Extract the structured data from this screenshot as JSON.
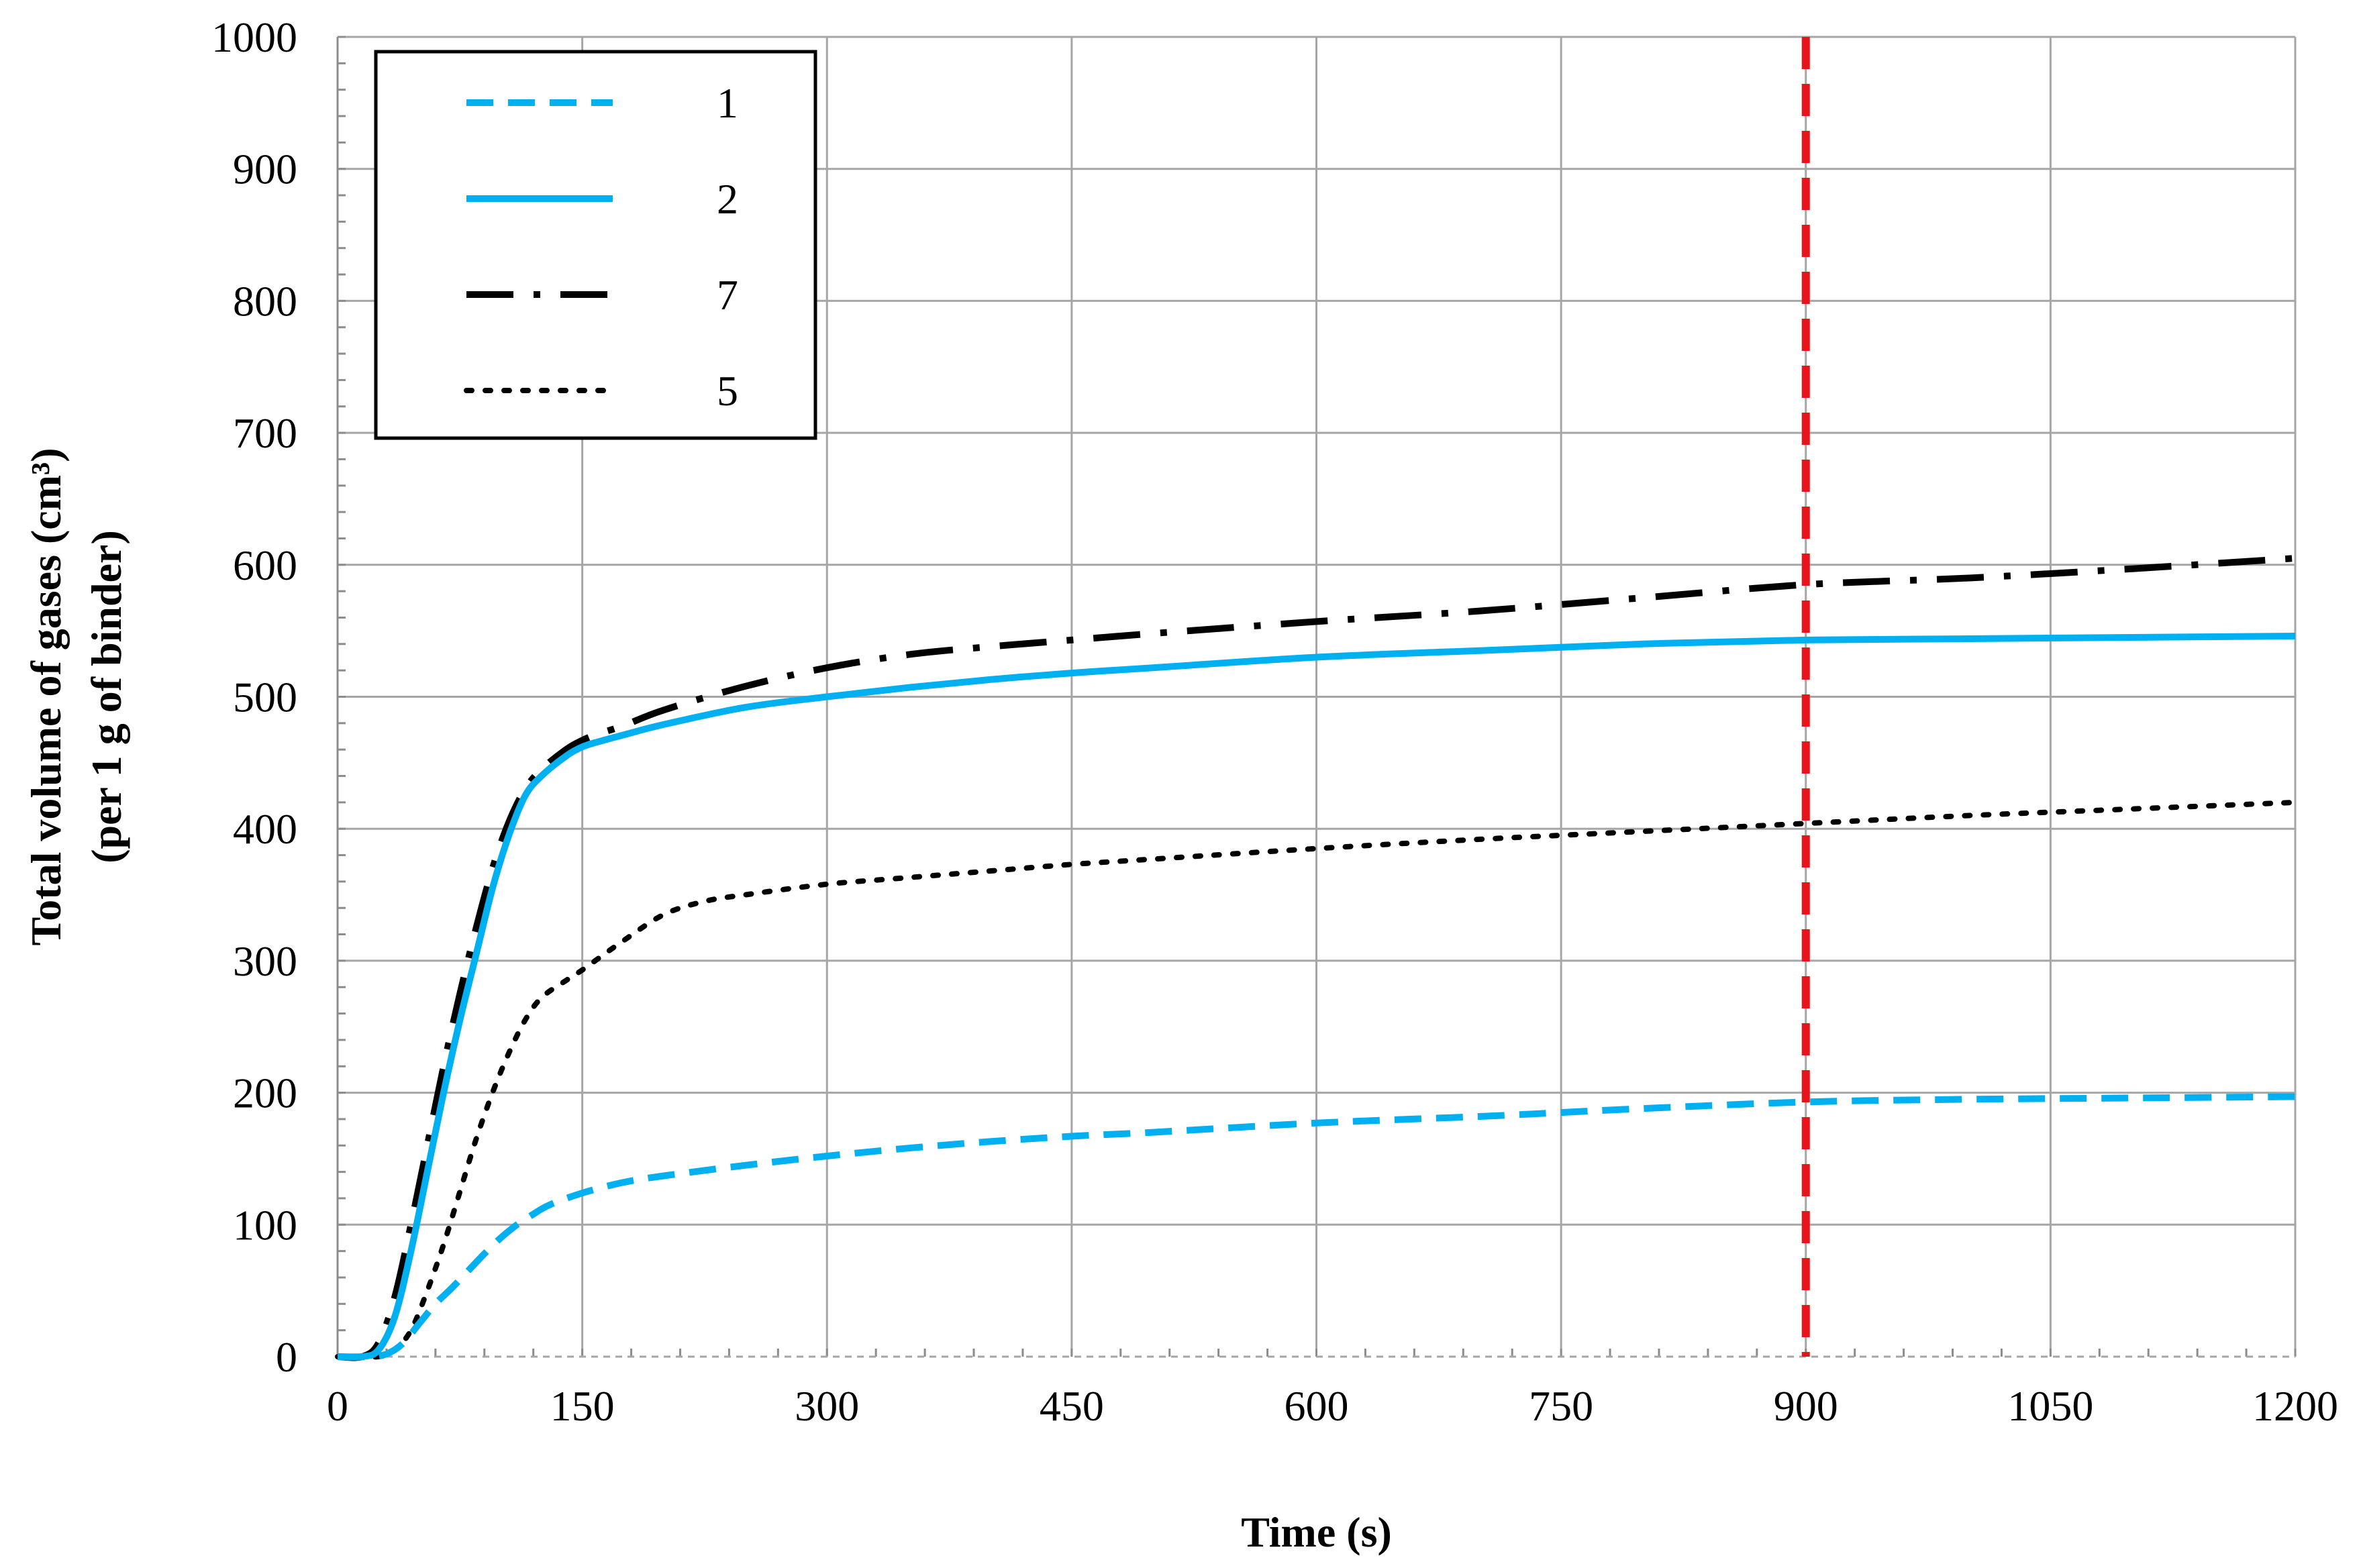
{
  "chart_data": {
    "type": "line",
    "title": "",
    "xlabel": "Time (s)",
    "ylabel_line1": "Total volume of gases (cm³)",
    "ylabel_line2": "(per 1 g of binder)",
    "xlim": [
      0,
      1200
    ],
    "ylim": [
      0,
      1000
    ],
    "xticks": [
      0,
      150,
      300,
      450,
      600,
      750,
      900,
      1050,
      1200
    ],
    "xtick_labels": [
      "0",
      "150",
      "300",
      "450",
      "600",
      "750",
      "900",
      "1050",
      "1200"
    ],
    "yticks": [
      0,
      100,
      200,
      300,
      400,
      500,
      600,
      700,
      800,
      900,
      1000
    ],
    "ytick_labels": [
      "0",
      "100",
      "200",
      "300",
      "400",
      "500",
      "600",
      "700",
      "800",
      "900",
      "1000"
    ],
    "grid": true,
    "legend_position": "top-left",
    "reference_line": {
      "x": 900,
      "color": "#e8141c",
      "style": "dashed"
    },
    "series": [
      {
        "name": "1",
        "style": "dashed",
        "color": "#00b0f0",
        "x": [
          0,
          20,
          30,
          40,
          50,
          60,
          70,
          80,
          90,
          100,
          110,
          120,
          130,
          150,
          175,
          200,
          250,
          300,
          350,
          400,
          450,
          500,
          600,
          700,
          750,
          800,
          900,
          1000,
          1100,
          1200
        ],
        "y": [
          0,
          0,
          2,
          10,
          25,
          40,
          52,
          65,
          78,
          90,
          100,
          108,
          115,
          124,
          132,
          137,
          145,
          152,
          158,
          163,
          167,
          170,
          177,
          182,
          185,
          188,
          193,
          195,
          196,
          197
        ]
      },
      {
        "name": "2",
        "style": "solid",
        "color": "#00b0f0",
        "x": [
          0,
          15,
          25,
          35,
          45,
          55,
          65,
          75,
          85,
          95,
          105,
          115,
          125,
          140,
          150,
          160,
          175,
          200,
          250,
          300,
          350,
          400,
          450,
          500,
          600,
          700,
          800,
          900,
          1000,
          1100,
          1200
        ],
        "y": [
          0,
          0,
          5,
          30,
          80,
          140,
          200,
          255,
          305,
          355,
          395,
          425,
          440,
          455,
          462,
          466,
          471,
          479,
          492,
          500,
          507,
          513,
          518,
          522,
          530,
          535,
          540,
          543,
          544,
          545,
          546
        ]
      },
      {
        "name": "7",
        "style": "dashdot",
        "color": "#000000",
        "x": [
          0,
          15,
          25,
          35,
          45,
          55,
          65,
          75,
          85,
          95,
          105,
          115,
          125,
          140,
          150,
          160,
          175,
          200,
          250,
          300,
          350,
          400,
          450,
          500,
          600,
          700,
          800,
          900,
          1000,
          1100,
          1200
        ],
        "y": [
          0,
          0,
          10,
          45,
          100,
          160,
          220,
          275,
          325,
          370,
          405,
          430,
          445,
          460,
          467,
          472,
          478,
          490,
          508,
          522,
          532,
          538,
          543,
          548,
          557,
          565,
          575,
          585,
          590,
          597,
          605
        ]
      },
      {
        "name": "5",
        "style": "dotted",
        "color": "#000000",
        "x": [
          0,
          25,
          35,
          45,
          55,
          65,
          75,
          85,
          95,
          105,
          115,
          125,
          140,
          150,
          175,
          200,
          225,
          250,
          300,
          350,
          400,
          450,
          500,
          600,
          700,
          800,
          900,
          1000,
          1100,
          1200
        ],
        "y": [
          0,
          0,
          5,
          20,
          50,
          85,
          125,
          165,
          200,
          230,
          255,
          272,
          285,
          293,
          315,
          335,
          345,
          350,
          358,
          363,
          368,
          373,
          377,
          385,
          392,
          398,
          404,
          410,
          415,
          420
        ]
      }
    ]
  }
}
